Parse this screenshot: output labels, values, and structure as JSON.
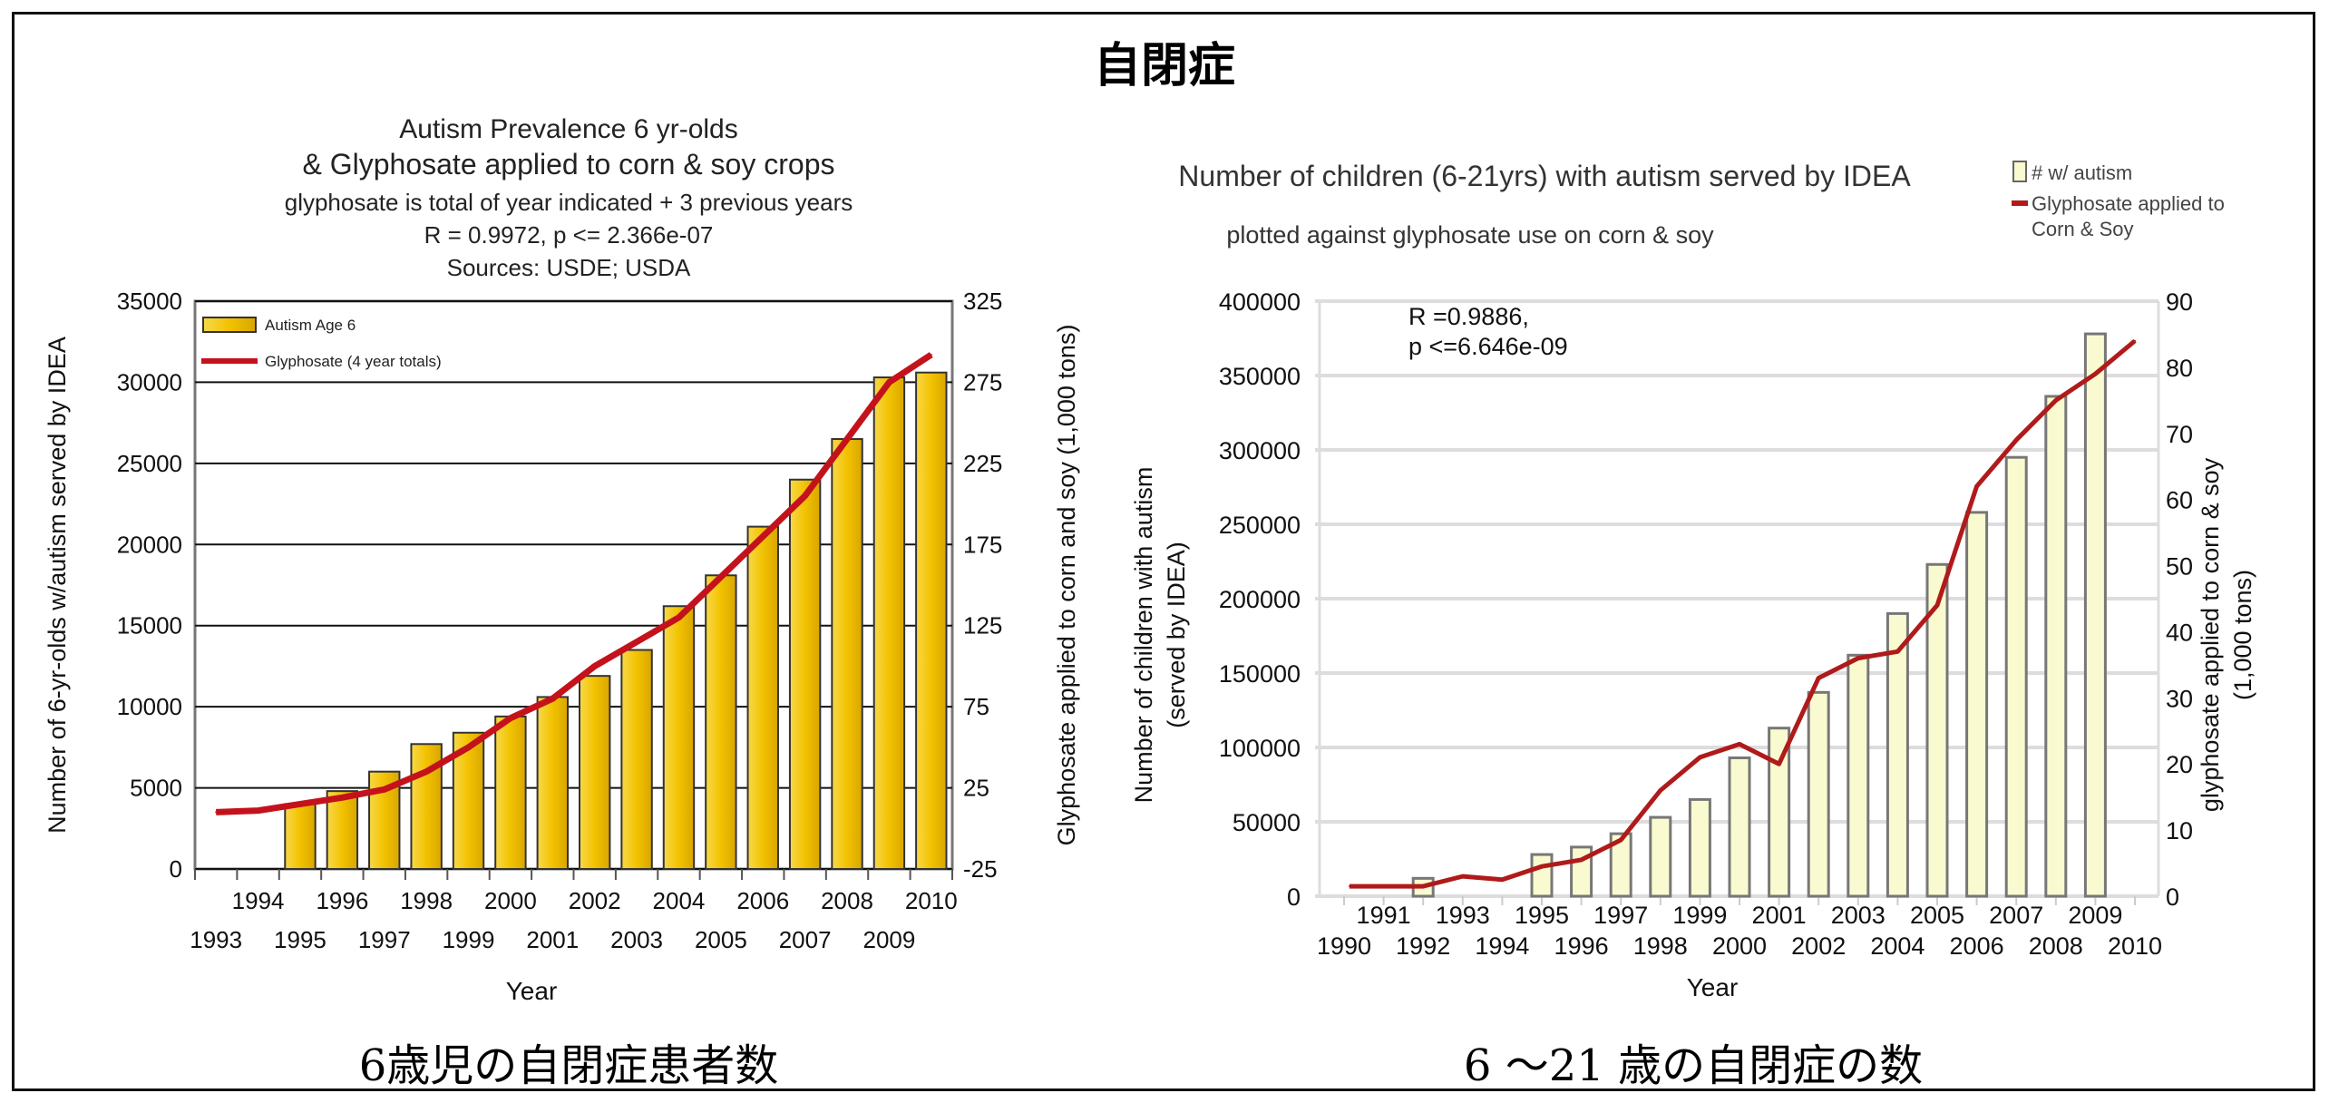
{
  "page_title": "自閉症",
  "captions": {
    "left": "6歳児の自閉症患者数",
    "right": "6 ～21 歳の自閉症の数"
  },
  "chart_data": [
    {
      "type": "bar",
      "title_lines": [
        "Autism Prevalence 6 yr-olds",
        "& Glyphosate applied to corn & soy crops",
        "glyphosate is total of year indicated + 3 previous years",
        "R = 0.9972, p <= 2.366e-07",
        "Sources: USDE; USDA"
      ],
      "xlabel": "Year",
      "ylabel": "Number of 6-yr-olds w/autism served by IDEA",
      "y2label": "Glyphosate applied to corn and soy (1,000 tons)",
      "categories": [
        "1993",
        "1994",
        "1995",
        "1996",
        "1997",
        "1998",
        "1999",
        "2000",
        "2001",
        "2002",
        "2003",
        "2004",
        "2005",
        "2006",
        "2007",
        "2008",
        "2009",
        "2010"
      ],
      "ylim": [
        0,
        35000
      ],
      "yticks": [
        0,
        5000,
        10000,
        15000,
        20000,
        25000,
        30000,
        35000
      ],
      "y2lim": [
        -25,
        325
      ],
      "y2ticks": [
        -25,
        25,
        75,
        125,
        175,
        225,
        275,
        325
      ],
      "legend": [
        "Autism Age 6",
        "Glyphosate (4 year totals)"
      ],
      "legend_position": "top-left",
      "series": [
        {
          "name": "Autism Age 6",
          "type": "bar",
          "axis": "left",
          "color": "#f2c200",
          "values": [
            null,
            null,
            4000,
            4800,
            6000,
            7700,
            8400,
            9400,
            10600,
            11900,
            13500,
            16200,
            18100,
            21100,
            24000,
            26500,
            30300,
            30600
          ]
        },
        {
          "name": "Glyphosate (4 year totals)",
          "type": "line",
          "axis": "right",
          "color": "#c4121c",
          "values": [
            10,
            11,
            15,
            19,
            24,
            35,
            50,
            68,
            80,
            100,
            115,
            130,
            155,
            180,
            205,
            240,
            275,
            292
          ]
        }
      ]
    },
    {
      "type": "bar",
      "title": "Number of children (6-21yrs) with autism served by IDEA",
      "subtitle": "plotted against glyphosate use on corn & soy",
      "annotation": [
        "R =0.9886,",
        "p <=6.646e-09"
      ],
      "xlabel": "Year",
      "ylabel": [
        "Number of children with autism",
        "(served by IDEA)"
      ],
      "y2label": [
        "glyphosate applied to corn & soy",
        "(1,000 tons)"
      ],
      "categories": [
        "1990",
        "1991",
        "1992",
        "1993",
        "1994",
        "1995",
        "1996",
        "1997",
        "1998",
        "1999",
        "2000",
        "2001",
        "2002",
        "2003",
        "2004",
        "2005",
        "2006",
        "2007",
        "2008",
        "2009",
        "2010"
      ],
      "ylim": [
        0,
        400000
      ],
      "yticks": [
        0,
        50000,
        100000,
        150000,
        200000,
        250000,
        300000,
        350000,
        400000
      ],
      "y2lim": [
        0,
        90
      ],
      "y2ticks": [
        0,
        10,
        20,
        30,
        40,
        50,
        60,
        70,
        80,
        90
      ],
      "legend": [
        "# w/ autism",
        "Glyphosate applied to",
        "Corn & Soy"
      ],
      "legend_position": "top-right",
      "series": [
        {
          "name": "# w/ autism",
          "type": "bar",
          "axis": "left",
          "color": "#fafad0",
          "values": [
            null,
            null,
            12000,
            null,
            null,
            28000,
            33000,
            42000,
            53000,
            65000,
            93000,
            113000,
            137000,
            162000,
            190000,
            223000,
            258000,
            295000,
            336000,
            378000,
            null
          ]
        },
        {
          "name": "Glyphosate applied to Corn & Soy",
          "type": "line",
          "axis": "right",
          "color": "#b01a1a",
          "values": [
            1.5,
            1.5,
            1.5,
            3,
            2.5,
            4.5,
            5.5,
            8.5,
            16,
            21,
            23,
            20,
            33,
            36,
            37,
            44,
            62,
            69,
            75,
            79,
            84
          ]
        }
      ]
    }
  ]
}
